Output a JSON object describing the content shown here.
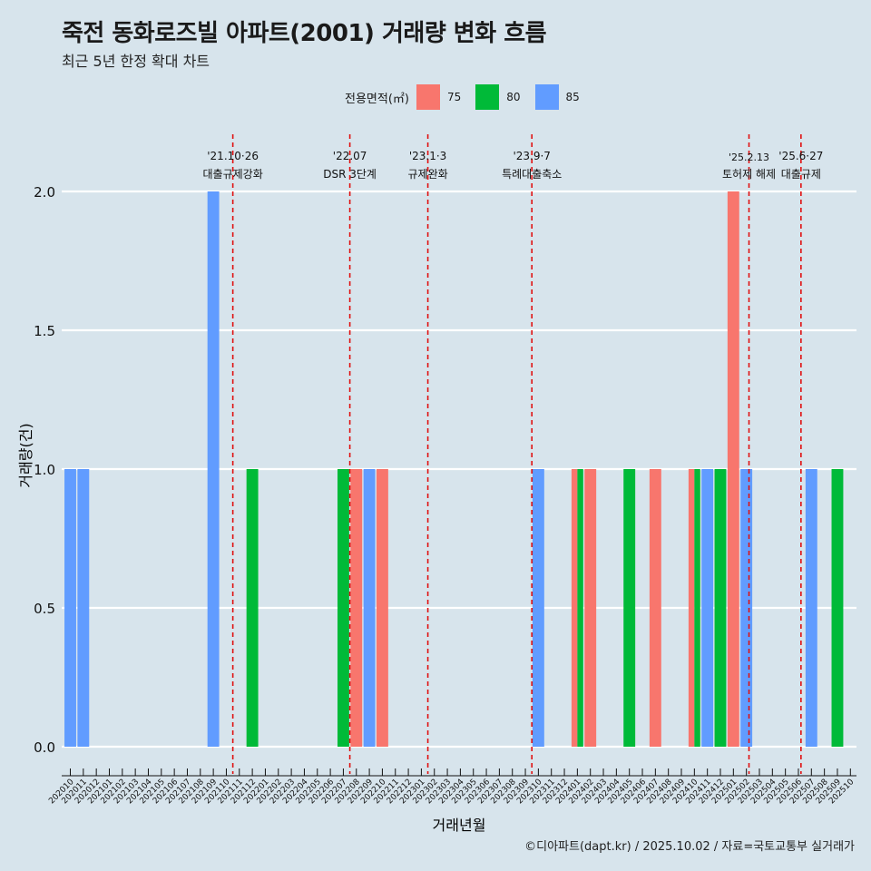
{
  "header": {
    "title": "죽전 동화로즈빌 아파트(2001) 거래량 변화 흐름",
    "subtitle": "최근 5년 한정 확대 차트"
  },
  "legend": {
    "title": "전용면적(㎡)",
    "items": [
      {
        "label": "75",
        "color": "#f8766d"
      },
      {
        "label": "80",
        "color": "#00ba38"
      },
      {
        "label": "85",
        "color": "#619cff"
      }
    ]
  },
  "footer": {
    "caption": "©디아파트(dapt.kr) / 2025.10.02 / 자료=국토교통부 실거래가"
  },
  "chart_data": {
    "type": "bar",
    "xlabel": "거래년월",
    "ylabel": "거래량(건)",
    "ylim": [
      -0.08,
      2.2
    ],
    "yticks": [
      0.0,
      0.5,
      1.0,
      1.5,
      2.0
    ],
    "ytick_labels": [
      "0.0",
      "0.5",
      "1.0",
      "1.5",
      "2.0"
    ],
    "categories": [
      "202010",
      "202011",
      "202012",
      "202101",
      "202102",
      "202103",
      "202104",
      "202105",
      "202106",
      "202107",
      "202108",
      "202109",
      "202110",
      "202111",
      "202112",
      "202201",
      "202202",
      "202203",
      "202204",
      "202205",
      "202206",
      "202207",
      "202208",
      "202209",
      "202210",
      "202211",
      "202212",
      "202301",
      "202302",
      "202303",
      "202304",
      "202305",
      "202306",
      "202307",
      "202308",
      "202309",
      "202310",
      "202311",
      "202312",
      "202401",
      "202402",
      "202403",
      "202404",
      "202405",
      "202406",
      "202407",
      "202408",
      "202409",
      "202410",
      "202411",
      "202412",
      "202501",
      "202502",
      "202503",
      "202504",
      "202505",
      "202506",
      "202507",
      "202508",
      "202509",
      "202510"
    ],
    "series": [
      {
        "name": "75",
        "color": "#f8766d",
        "points": [
          {
            "x": "202208",
            "y": 1
          },
          {
            "x": "202210",
            "y": 1
          },
          {
            "x": "202401",
            "y": 1
          },
          {
            "x": "202402",
            "y": 1
          },
          {
            "x": "202407",
            "y": 1
          },
          {
            "x": "202410",
            "y": 1
          },
          {
            "x": "202501",
            "y": 2
          }
        ]
      },
      {
        "name": "80",
        "color": "#00ba38",
        "points": [
          {
            "x": "202112",
            "y": 1
          },
          {
            "x": "202207",
            "y": 1
          },
          {
            "x": "202401",
            "y": 1
          },
          {
            "x": "202405",
            "y": 1
          },
          {
            "x": "202410",
            "y": 1
          },
          {
            "x": "202412",
            "y": 1
          },
          {
            "x": "202509",
            "y": 1
          }
        ]
      },
      {
        "name": "85",
        "color": "#619cff",
        "points": [
          {
            "x": "202010",
            "y": 1
          },
          {
            "x": "202011",
            "y": 1
          },
          {
            "x": "202109",
            "y": 2
          },
          {
            "x": "202209",
            "y": 1
          },
          {
            "x": "202310",
            "y": 1
          },
          {
            "x": "202411",
            "y": 1
          },
          {
            "x": "202502",
            "y": 1
          },
          {
            "x": "202507",
            "y": 1
          }
        ]
      }
    ],
    "annotations": [
      {
        "x": 12.5,
        "date": "'21.10·26",
        "text": "대출규제강화"
      },
      {
        "x": 21.5,
        "date": "'22.07",
        "text": "DSR 3단계"
      },
      {
        "x": 27.5,
        "date": "'23.1·3",
        "text": "규제완화"
      },
      {
        "x": 35.5,
        "date": "'23.9·7",
        "text": "특례대출축소"
      },
      {
        "x": 52.2,
        "date": "'25.2.13",
        "text": "토허제 해제"
      },
      {
        "x": 56.2,
        "date": "'25.6·27",
        "text": "대출규제"
      }
    ]
  }
}
